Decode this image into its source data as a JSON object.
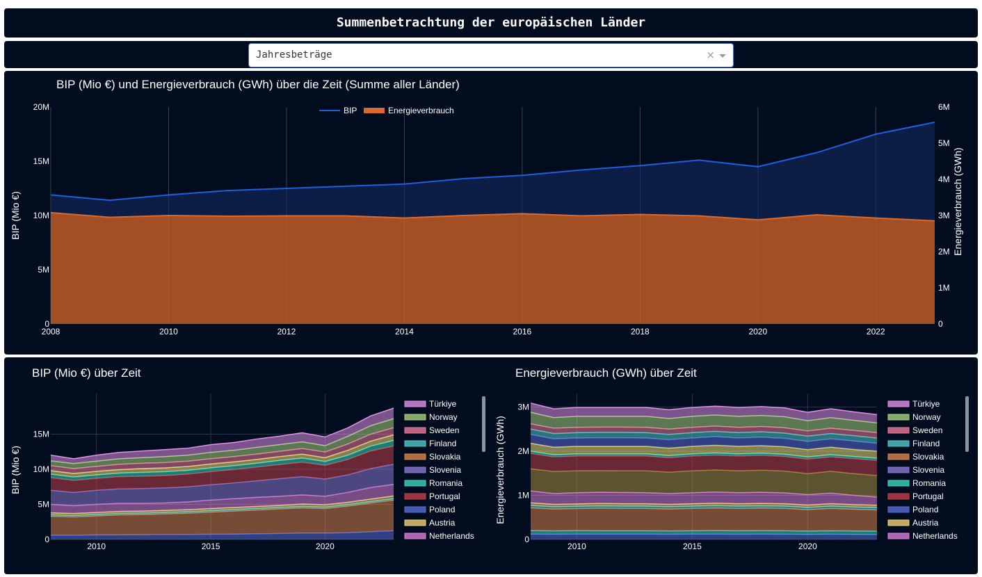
{
  "page": {
    "title": "Summenbetrachtung der europäischen Länder",
    "dropdown": {
      "value": "Jahresbeträge",
      "clear": "×"
    }
  },
  "colors": {
    "panel_bg": "#010d1e",
    "bip_line": "#1f5ee0",
    "bip_fill": "#0d1f4a",
    "energy_fill": "#a34e23",
    "energy_line": "#d86a30"
  },
  "chart_data": [
    {
      "type": "area",
      "title": "BIP (Mio €) und Energieverbrauch (GWh) über die Zeit (Summe aller Länder)",
      "x": [
        2008,
        2009,
        2010,
        2011,
        2012,
        2013,
        2014,
        2015,
        2016,
        2017,
        2018,
        2019,
        2020,
        2021,
        2022,
        2023
      ],
      "xticks": [
        "2008",
        "2010",
        "2012",
        "2014",
        "2016",
        "2018",
        "2020",
        "2022"
      ],
      "ylabel": "BIP (Mio €)",
      "y2label": "Energieverbrauch (GWh)",
      "ylim": [
        0,
        20000000
      ],
      "y2lim": [
        0,
        6000000
      ],
      "yticks": [
        "0",
        "5M",
        "10M",
        "15M",
        "20M"
      ],
      "y2ticks": [
        "0",
        "1M",
        "2M",
        "3M",
        "4M",
        "5M",
        "6M"
      ],
      "legend_position": "top-center",
      "series": [
        {
          "name": "BIP",
          "axis": "y",
          "values": [
            11900000,
            11400000,
            11900000,
            12300000,
            12500000,
            12700000,
            12900000,
            13400000,
            13700000,
            14200000,
            14600000,
            15100000,
            14500000,
            15800000,
            17500000,
            18600000
          ]
        },
        {
          "name": "Energieverbrauch",
          "axis": "y2",
          "values": [
            3080000,
            2950000,
            3000000,
            2980000,
            2990000,
            2990000,
            2930000,
            3000000,
            3050000,
            2990000,
            3030000,
            2990000,
            2880000,
            3020000,
            2930000,
            2850000
          ]
        }
      ]
    },
    {
      "type": "area",
      "title": "BIP (Mio €) über Zeit",
      "ylabel": "BIP (Mio €)",
      "x": [
        2008,
        2009,
        2010,
        2011,
        2012,
        2013,
        2014,
        2015,
        2016,
        2017,
        2018,
        2019,
        2020,
        2021,
        2022,
        2023
      ],
      "xticks": [
        "2010",
        "2015",
        "2020"
      ],
      "yticks": [
        "0",
        "5M",
        "10M",
        "15M"
      ],
      "ylim": [
        0,
        19800000
      ],
      "stacked": true,
      "legend": [
        "Türkiye",
        "Norway",
        "Sweden",
        "Finland",
        "Slovakia",
        "Slovenia",
        "Romania",
        "Portugal",
        "Poland",
        "Austria",
        "Netherlands"
      ],
      "boundaries": [
        {
          "color": "#5a6bd6",
          "values": [
            600000,
            600000,
            650000,
            650000,
            680000,
            700000,
            720000,
            740000,
            760000,
            800000,
            850000,
            900000,
            900000,
            950000,
            1100000,
            1250000
          ]
        },
        {
          "color": "#d9824a",
          "values": [
            3300000,
            3200000,
            3350000,
            3500000,
            3550000,
            3650000,
            3750000,
            3900000,
            4050000,
            4200000,
            4350000,
            4500000,
            4400000,
            4750000,
            5200000,
            5600000
          ]
        },
        {
          "color": "#50c8c8",
          "values": [
            3500000,
            3400000,
            3550000,
            3700000,
            3750000,
            3850000,
            3950000,
            4100000,
            4250000,
            4400000,
            4550000,
            4700000,
            4600000,
            4950000,
            5400000,
            5800000
          ]
        },
        {
          "color": "#f2d07a",
          "values": [
            3800000,
            3700000,
            3850000,
            4000000,
            4050000,
            4150000,
            4250000,
            4400000,
            4550000,
            4700000,
            4850000,
            5050000,
            4950000,
            5300000,
            5750000,
            6200000
          ]
        },
        {
          "color": "#d880d8",
          "values": [
            5000000,
            4800000,
            5000000,
            5150000,
            5150000,
            5200000,
            5350000,
            5600000,
            5800000,
            6000000,
            6150000,
            6350000,
            6150000,
            6700000,
            7400000,
            7850000
          ]
        },
        {
          "color": "#8a78d0",
          "values": [
            7000000,
            6700000,
            7000000,
            7200000,
            7250000,
            7350000,
            7500000,
            7800000,
            8050000,
            8350000,
            8650000,
            8950000,
            8600000,
            9200000,
            10100000,
            10700000
          ]
        },
        {
          "color": "#c0404a",
          "values": [
            8800000,
            8400000,
            8700000,
            8950000,
            9000000,
            9100000,
            9300000,
            9650000,
            9950000,
            10300000,
            10650000,
            11000000,
            10550000,
            11400000,
            12600000,
            13300000
          ]
        },
        {
          "color": "#3fd4c0",
          "values": [
            9300000,
            8900000,
            9200000,
            9450000,
            9550000,
            9650000,
            9850000,
            10200000,
            10500000,
            10850000,
            11250000,
            11600000,
            11100000,
            12000000,
            13300000,
            14100000
          ]
        },
        {
          "color": "#f2e07a",
          "values": [
            9800000,
            9400000,
            9700000,
            9950000,
            10100000,
            10200000,
            10400000,
            10750000,
            11050000,
            11400000,
            11800000,
            12150000,
            11650000,
            12700000,
            14000000,
            14900000
          ]
        },
        {
          "color": "#e87a9a",
          "values": [
            10500000,
            10100000,
            10400000,
            10700000,
            10850000,
            10950000,
            11150000,
            11500000,
            11800000,
            12150000,
            12550000,
            12950000,
            12450000,
            13600000,
            15000000,
            15900000
          ]
        },
        {
          "color": "#a8d080",
          "values": [
            11200000,
            10800000,
            11150000,
            11500000,
            11650000,
            11800000,
            12000000,
            12400000,
            12700000,
            13100000,
            13500000,
            13900000,
            13350000,
            14700000,
            16200000,
            17200000
          ]
        },
        {
          "color": "#e090e8",
          "values": [
            12000000,
            11500000,
            12000000,
            12400000,
            12600000,
            12800000,
            13000000,
            13500000,
            13800000,
            14300000,
            14700000,
            15200000,
            14600000,
            15900000,
            17600000,
            18700000
          ]
        }
      ]
    },
    {
      "type": "area",
      "title": "Energieverbrauch (GWh) über Zeit",
      "ylabel": "Energieverbrauch (GWh)",
      "x": [
        2008,
        2009,
        2010,
        2011,
        2012,
        2013,
        2014,
        2015,
        2016,
        2017,
        2018,
        2019,
        2020,
        2021,
        2022,
        2023
      ],
      "xticks": [
        "2010",
        "2015",
        "2020"
      ],
      "yticks": [
        "0",
        "1M",
        "2M",
        "3M"
      ],
      "ylim": [
        0,
        3150000
      ],
      "stacked": true,
      "legend": [
        "Türkiye",
        "Norway",
        "Sweden",
        "Finland",
        "Slovakia",
        "Slovenia",
        "Romania",
        "Portugal",
        "Poland",
        "Austria",
        "Netherlands"
      ],
      "boundaries": [
        {
          "color": "#5a6bd6",
          "values": [
            120000,
            118000,
            120000,
            120000,
            120000,
            120000,
            118000,
            120000,
            120000,
            118000,
            120000,
            118000,
            115000,
            118000,
            115000,
            112000
          ]
        },
        {
          "color": "#3fd4c0",
          "values": [
            200000,
            195000,
            198000,
            197000,
            197000,
            197000,
            193000,
            197000,
            200000,
            197000,
            199000,
            196000,
            190000,
            197000,
            192000,
            188000
          ]
        },
        {
          "color": "#d9824a",
          "values": [
            720000,
            690000,
            700000,
            710000,
            705000,
            705000,
            690000,
            705000,
            715000,
            705000,
            712000,
            705000,
            675000,
            705000,
            685000,
            670000
          ]
        },
        {
          "color": "#50c8c8",
          "values": [
            770000,
            740000,
            750000,
            760000,
            755000,
            755000,
            740000,
            755000,
            765000,
            755000,
            762000,
            755000,
            725000,
            755000,
            735000,
            720000
          ]
        },
        {
          "color": "#f2d07a",
          "values": [
            830000,
            795000,
            805000,
            815000,
            810000,
            810000,
            795000,
            810000,
            822000,
            810000,
            818000,
            810000,
            780000,
            812000,
            790000,
            775000
          ]
        },
        {
          "color": "#d880d8",
          "values": [
            1100000,
            1040000,
            1060000,
            1070000,
            1065000,
            1060000,
            1040000,
            1060000,
            1075000,
            1060000,
            1070000,
            1055000,
            1015000,
            1050000,
            1000000,
            960000
          ]
        },
        {
          "color": "#a89040",
          "values": [
            1600000,
            1540000,
            1555000,
            1560000,
            1555000,
            1555000,
            1525000,
            1555000,
            1575000,
            1555000,
            1570000,
            1550000,
            1490000,
            1545000,
            1490000,
            1450000
          ]
        },
        {
          "color": "#c0404a",
          "values": [
            1950000,
            1870000,
            1890000,
            1890000,
            1890000,
            1890000,
            1850000,
            1890000,
            1910000,
            1890000,
            1905000,
            1880000,
            1820000,
            1870000,
            1830000,
            1790000
          ]
        },
        {
          "color": "#3fd4c0",
          "values": [
            2000000,
            1920000,
            1940000,
            1940000,
            1940000,
            1940000,
            1900000,
            1940000,
            1960000,
            1940000,
            1955000,
            1930000,
            1870000,
            1920000,
            1880000,
            1840000
          ]
        },
        {
          "color": "#f2e07a",
          "values": [
            2180000,
            2090000,
            2110000,
            2110000,
            2110000,
            2110000,
            2070000,
            2110000,
            2135000,
            2110000,
            2125000,
            2100000,
            2035000,
            2090000,
            2040000,
            2000000
          ]
        },
        {
          "color": "#5a6bd6",
          "values": [
            2380000,
            2280000,
            2300000,
            2305000,
            2305000,
            2300000,
            2260000,
            2300000,
            2330000,
            2300000,
            2320000,
            2290000,
            2220000,
            2280000,
            2230000,
            2180000
          ]
        },
        {
          "color": "#50c8c8",
          "values": [
            2500000,
            2400000,
            2420000,
            2425000,
            2425000,
            2420000,
            2380000,
            2420000,
            2450000,
            2420000,
            2440000,
            2410000,
            2340000,
            2400000,
            2350000,
            2300000
          ]
        },
        {
          "color": "#e87a9a",
          "values": [
            2620000,
            2520000,
            2540000,
            2545000,
            2545000,
            2540000,
            2500000,
            2540000,
            2570000,
            2540000,
            2560000,
            2530000,
            2460000,
            2520000,
            2470000,
            2420000
          ]
        },
        {
          "color": "#a8d080",
          "values": [
            2880000,
            2760000,
            2790000,
            2790000,
            2790000,
            2790000,
            2740000,
            2790000,
            2820000,
            2790000,
            2810000,
            2780000,
            2690000,
            2760000,
            2700000,
            2640000
          ]
        },
        {
          "color": "#e090e8",
          "values": [
            3090000,
            2960000,
            2990000,
            2990000,
            2990000,
            2990000,
            2940000,
            2990000,
            3020000,
            2990000,
            3010000,
            2980000,
            2880000,
            2960000,
            2890000,
            2830000
          ]
        }
      ]
    }
  ]
}
